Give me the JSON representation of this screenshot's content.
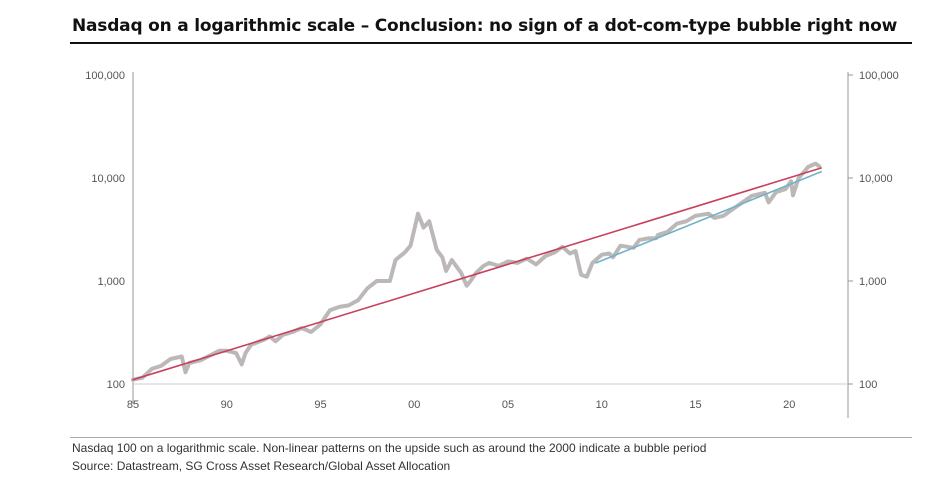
{
  "title": "Nasdaq on a logarithmic scale – Conclusion: no sign of a dot-com-type bubble right now",
  "footnote": "Nasdaq 100 on a logarithmic scale. Non-linear patterns on the upside such as around the 2000 indicate a bubble period",
  "source": "Source: Datastream, SG Cross Asset Research/Global Asset Allocation",
  "chart_data": {
    "type": "line",
    "title": "",
    "xlabel": "",
    "ylabel": "",
    "y_scale": "log",
    "ylim": [
      100,
      100000
    ],
    "xlim": [
      1985,
      2023
    ],
    "x_ticks": [
      {
        "v": 1985,
        "label": "85"
      },
      {
        "v": 1990,
        "label": "90"
      },
      {
        "v": 1995,
        "label": "95"
      },
      {
        "v": 2000,
        "label": "00"
      },
      {
        "v": 2005,
        "label": "05"
      },
      {
        "v": 2010,
        "label": "10"
      },
      {
        "v": 2015,
        "label": "15"
      },
      {
        "v": 2020,
        "label": "20"
      }
    ],
    "y_ticks": [
      {
        "v": 100,
        "label": "100"
      },
      {
        "v": 1000,
        "label": "1,000"
      },
      {
        "v": 10000,
        "label": "10,000"
      },
      {
        "v": 100000,
        "label": "100,000"
      }
    ],
    "grid": false,
    "legend": "none",
    "series": [
      {
        "role": "index",
        "color": "#bdb8b8",
        "points": [
          [
            1985,
            110
          ],
          [
            1985.5,
            115
          ],
          [
            1986,
            140
          ],
          [
            1986.5,
            150
          ],
          [
            1987,
            175
          ],
          [
            1987.6,
            185
          ],
          [
            1987.8,
            130
          ],
          [
            1988,
            160
          ],
          [
            1988.6,
            170
          ],
          [
            1989,
            185
          ],
          [
            1989.6,
            210
          ],
          [
            1990,
            210
          ],
          [
            1990.5,
            200
          ],
          [
            1990.8,
            155
          ],
          [
            1991,
            200
          ],
          [
            1991.3,
            240
          ],
          [
            1992,
            270
          ],
          [
            1992.3,
            290
          ],
          [
            1992.6,
            260
          ],
          [
            1993,
            300
          ],
          [
            1993.5,
            320
          ],
          [
            1994,
            350
          ],
          [
            1994.5,
            320
          ],
          [
            1995,
            380
          ],
          [
            1995.5,
            520
          ],
          [
            1996,
            560
          ],
          [
            1996.5,
            580
          ],
          [
            1997,
            650
          ],
          [
            1997.5,
            850
          ],
          [
            1998,
            1000
          ],
          [
            1998.7,
            1000
          ],
          [
            1999,
            1600
          ],
          [
            1999.5,
            1900
          ],
          [
            1999.8,
            2200
          ],
          [
            2000.2,
            4500
          ],
          [
            2000.5,
            3300
          ],
          [
            2000.8,
            3800
          ],
          [
            2001.2,
            2000
          ],
          [
            2001.5,
            1700
          ],
          [
            2001.7,
            1250
          ],
          [
            2002,
            1600
          ],
          [
            2002.5,
            1200
          ],
          [
            2002.8,
            900
          ],
          [
            2003,
            1000
          ],
          [
            2003.3,
            1200
          ],
          [
            2003.7,
            1400
          ],
          [
            2004,
            1500
          ],
          [
            2004.5,
            1400
          ],
          [
            2005,
            1550
          ],
          [
            2005.5,
            1500
          ],
          [
            2006,
            1650
          ],
          [
            2006.5,
            1450
          ],
          [
            2007,
            1750
          ],
          [
            2007.5,
            1900
          ],
          [
            2007.9,
            2150
          ],
          [
            2008.3,
            1850
          ],
          [
            2008.6,
            1950
          ],
          [
            2008.9,
            1150
          ],
          [
            2009.2,
            1100
          ],
          [
            2009.5,
            1500
          ],
          [
            2010,
            1800
          ],
          [
            2010.4,
            1850
          ],
          [
            2010.6,
            1700
          ],
          [
            2011,
            2200
          ],
          [
            2011.7,
            2100
          ],
          [
            2012,
            2500
          ],
          [
            2012.5,
            2600
          ],
          [
            2012.9,
            2600
          ],
          [
            2013,
            2800
          ],
          [
            2013.5,
            3000
          ],
          [
            2014,
            3600
          ],
          [
            2014.5,
            3800
          ],
          [
            2015,
            4300
          ],
          [
            2015.7,
            4500
          ],
          [
            2016,
            4100
          ],
          [
            2016.5,
            4300
          ],
          [
            2017,
            5000
          ],
          [
            2017.5,
            5800
          ],
          [
            2018,
            6700
          ],
          [
            2018.7,
            7200
          ],
          [
            2018.9,
            5800
          ],
          [
            2019.3,
            7300
          ],
          [
            2019.8,
            7800
          ],
          [
            2020.1,
            9300
          ],
          [
            2020.2,
            6800
          ],
          [
            2020.5,
            10000
          ],
          [
            2020.8,
            11500
          ],
          [
            2021,
            12800
          ],
          [
            2021.4,
            13800
          ],
          [
            2021.6,
            13000
          ]
        ]
      },
      {
        "role": "trend-full",
        "color": "#c8415a",
        "points": [
          [
            1985,
            110
          ],
          [
            2021.7,
            12500
          ]
        ]
      },
      {
        "role": "trend-post-2009",
        "color": "#6fb3c8",
        "points": [
          [
            2009.7,
            1500
          ],
          [
            2021.7,
            11500
          ]
        ]
      }
    ]
  }
}
